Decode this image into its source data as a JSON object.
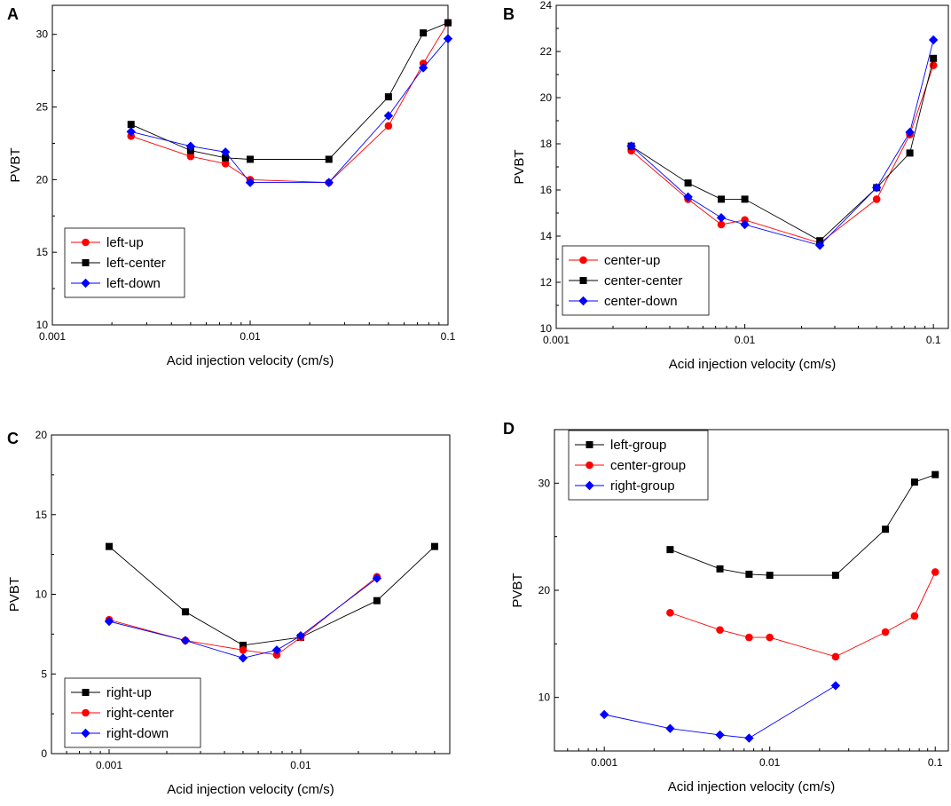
{
  "chart_data": [
    {
      "panel": "A",
      "type": "line",
      "xscale": "log",
      "xlim": [
        0.001,
        0.1
      ],
      "ylim": [
        10,
        32
      ],
      "xticks": [
        0.001,
        0.01,
        0.1
      ],
      "xtick_labels": [
        "0.001",
        "0.01",
        "0.1"
      ],
      "yticks": [
        10,
        15,
        20,
        25,
        30
      ],
      "ytick_labels": [
        "10",
        "15",
        "20",
        "25",
        "30"
      ],
      "xlabel": "Acid injection velocity (cm/s)",
      "ylabel": "PVBT",
      "legend_position": "bottom-left",
      "series": [
        {
          "name": "left-up",
          "color": "#ff0000",
          "marker": "circle",
          "x": [
            0.0025,
            0.005,
            0.0075,
            0.01,
            0.025,
            0.05,
            0.075,
            0.1
          ],
          "y": [
            23.0,
            21.6,
            21.1,
            20.0,
            19.8,
            23.7,
            28.0,
            30.8
          ]
        },
        {
          "name": "left-center",
          "color": "#000000",
          "marker": "square",
          "x": [
            0.0025,
            0.005,
            0.0075,
            0.01,
            0.025,
            0.05,
            0.075,
            0.1
          ],
          "y": [
            23.8,
            22.0,
            21.5,
            21.4,
            21.4,
            25.7,
            30.1,
            30.8
          ]
        },
        {
          "name": "left-down",
          "color": "#0000ff",
          "marker": "diamond",
          "x": [
            0.0025,
            0.005,
            0.0075,
            0.01,
            0.025,
            0.05,
            0.075,
            0.1
          ],
          "y": [
            23.3,
            22.3,
            21.9,
            19.8,
            19.8,
            24.4,
            27.7,
            29.7
          ]
        }
      ]
    },
    {
      "panel": "B",
      "type": "line",
      "xscale": "log",
      "xlim": [
        0.001,
        0.12
      ],
      "ylim": [
        10,
        24
      ],
      "xticks": [
        0.001,
        0.01,
        0.1
      ],
      "xtick_labels": [
        "0.001",
        "0.01",
        "0.1"
      ],
      "yticks": [
        10,
        12,
        14,
        16,
        18,
        20,
        22,
        24
      ],
      "ytick_labels": [
        "10",
        "12",
        "14",
        "16",
        "18",
        "20",
        "22",
        "24"
      ],
      "xlabel": "Acid injection velocity (cm/s)",
      "ylabel": "PVBT",
      "legend_position": "bottom-left",
      "series": [
        {
          "name": "center-up",
          "color": "#ff0000",
          "marker": "circle",
          "x": [
            0.0025,
            0.005,
            0.0075,
            0.01,
            0.025,
            0.05,
            0.075,
            0.1
          ],
          "y": [
            17.7,
            15.6,
            14.5,
            14.7,
            13.7,
            15.6,
            18.4,
            21.4
          ]
        },
        {
          "name": "center-center",
          "color": "#000000",
          "marker": "square",
          "x": [
            0.0025,
            0.005,
            0.0075,
            0.01,
            0.025,
            0.05,
            0.075,
            0.1
          ],
          "y": [
            17.9,
            16.3,
            15.6,
            15.6,
            13.8,
            16.1,
            17.6,
            21.7
          ]
        },
        {
          "name": "center-down",
          "color": "#0000ff",
          "marker": "diamond",
          "x": [
            0.0025,
            0.005,
            0.0075,
            0.01,
            0.025,
            0.05,
            0.075,
            0.1
          ],
          "y": [
            17.9,
            15.7,
            14.8,
            14.5,
            13.6,
            16.1,
            18.5,
            22.5
          ]
        }
      ]
    },
    {
      "panel": "C",
      "type": "line",
      "xscale": "log",
      "xlim": [
        0.0005,
        0.06
      ],
      "ylim": [
        0,
        20
      ],
      "xticks": [
        0.001,
        0.01
      ],
      "xtick_labels": [
        "0.001",
        "0.01"
      ],
      "yticks": [
        0,
        5,
        10,
        15,
        20
      ],
      "ytick_labels": [
        "0",
        "5",
        "10",
        "15",
        "20"
      ],
      "xlabel": "Acid injection velocity (cm/s)",
      "ylabel": "PVBT",
      "legend_position": "bottom-left",
      "series": [
        {
          "name": "right-up",
          "color": "#000000",
          "marker": "square",
          "x": [
            0.001,
            0.0025,
            0.005,
            0.01,
            0.025,
            0.05
          ],
          "y": [
            13.0,
            8.9,
            6.8,
            7.3,
            9.6,
            13.0
          ]
        },
        {
          "name": "right-center",
          "color": "#ff0000",
          "marker": "circle",
          "x": [
            0.001,
            0.0025,
            0.005,
            0.0075,
            0.01,
            0.025
          ],
          "y": [
            8.4,
            7.1,
            6.5,
            6.2,
            7.3,
            11.1
          ]
        },
        {
          "name": "right-down",
          "color": "#0000ff",
          "marker": "diamond",
          "x": [
            0.001,
            0.0025,
            0.005,
            0.0075,
            0.01,
            0.025
          ],
          "y": [
            8.3,
            7.1,
            6.0,
            6.5,
            7.4,
            11.0
          ]
        }
      ]
    },
    {
      "panel": "D",
      "type": "line",
      "xscale": "log",
      "xlim": [
        0.0005,
        0.12
      ],
      "ylim": [
        5,
        35
      ],
      "xticks": [
        0.001,
        0.01,
        0.1
      ],
      "xtick_labels": [
        "0.001",
        "0.01",
        "0.1"
      ],
      "yticks": [
        10,
        20,
        30
      ],
      "ytick_labels": [
        "10",
        "20",
        "30"
      ],
      "xlabel": "Acid injection velocity (cm/s)",
      "ylabel": "PVBT",
      "legend_position": "top-left",
      "series": [
        {
          "name": "left-group",
          "color": "#000000",
          "marker": "square",
          "x": [
            0.0025,
            0.005,
            0.0075,
            0.01,
            0.025,
            0.05,
            0.075,
            0.1
          ],
          "y": [
            23.8,
            22.0,
            21.5,
            21.4,
            21.4,
            25.7,
            30.1,
            30.8
          ]
        },
        {
          "name": "center-group",
          "color": "#ff0000",
          "marker": "circle",
          "x": [
            0.0025,
            0.005,
            0.0075,
            0.01,
            0.025,
            0.05,
            0.075,
            0.1
          ],
          "y": [
            17.9,
            16.3,
            15.6,
            15.6,
            13.8,
            16.1,
            17.6,
            21.7
          ]
        },
        {
          "name": "right-group",
          "color": "#0000ff",
          "marker": "diamond",
          "x": [
            0.001,
            0.0025,
            0.005,
            0.0075,
            0.025
          ],
          "y": [
            8.4,
            7.1,
            6.5,
            6.2,
            11.1
          ]
        }
      ]
    }
  ]
}
